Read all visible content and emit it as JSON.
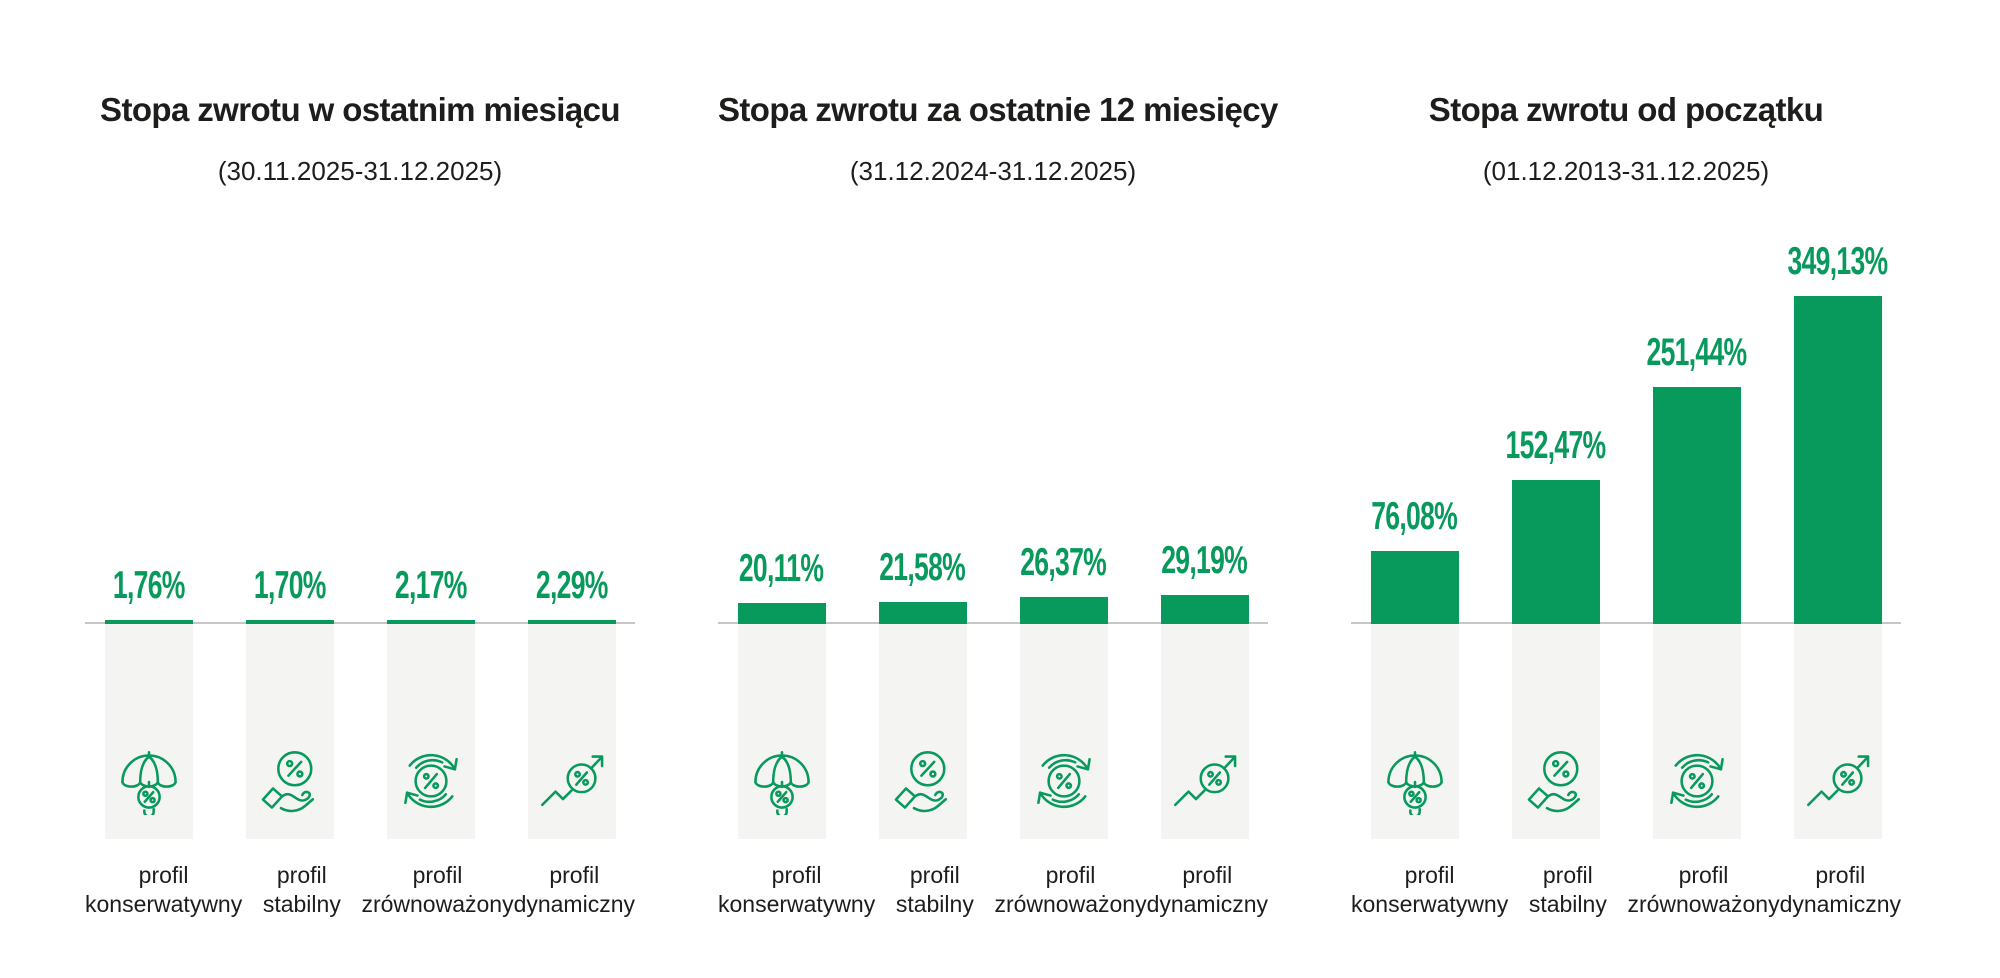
{
  "colors": {
    "accent_green": "#089a5c",
    "bar_green": "#089a5c",
    "text_dark": "#1d1d1b",
    "column_background": "#f4f4f2",
    "baseline_gray": "#c6c6c6"
  },
  "icons": {
    "profile_icons": [
      "umbrella-percent-icon",
      "hand-holding-percent-icon",
      "cycle-percent-icon",
      "growth-arrow-percent-icon"
    ]
  },
  "chart_data": [
    {
      "type": "bar",
      "title": "Stopa zwrotu w ostatnim miesiącu",
      "subtitle": "(30.11.2025-31.12.2025)",
      "categories": [
        "profil konserwatywny",
        "profil stabilny",
        "profil zrównoważony",
        "profil dynamiczny"
      ],
      "values": [
        1.76,
        1.7,
        2.17,
        2.29
      ],
      "value_labels": [
        "1,76%",
        "1,70%",
        "2,17%",
        "2,29%"
      ],
      "unit": "%",
      "bar_color": "#089a5c",
      "grid": false,
      "legend": false,
      "ylim": [
        0,
        350
      ],
      "shared_y_scale_across_charts": true
    },
    {
      "type": "bar",
      "title": "Stopa zwrotu za ostatnie 12 miesięcy",
      "subtitle": "(31.12.2024-31.12.2025)",
      "categories": [
        "profil konserwatywny",
        "profil stabilny",
        "profil zrównoważony",
        "profil dynamiczny"
      ],
      "values": [
        20.11,
        21.58,
        26.37,
        29.19
      ],
      "value_labels": [
        "20,11%",
        "21,58%",
        "26,37%",
        "29,19%"
      ],
      "unit": "%",
      "bar_color": "#089a5c",
      "grid": false,
      "legend": false,
      "ylim": [
        0,
        350
      ],
      "shared_y_scale_across_charts": true
    },
    {
      "type": "bar",
      "title": "Stopa zwrotu od początku",
      "subtitle": "(01.12.2013-31.12.2025)",
      "categories": [
        "profil konserwatywny",
        "profil stabilny",
        "profil zrównoważony",
        "profil dynamiczny"
      ],
      "values": [
        76.08,
        152.47,
        251.44,
        349.13
      ],
      "value_labels": [
        "76,08%",
        "152,47%",
        "251,44%",
        "349,13%"
      ],
      "unit": "%",
      "bar_color": "#089a5c",
      "grid": false,
      "legend": false,
      "ylim": [
        0,
        350
      ],
      "shared_y_scale_across_charts": true
    }
  ]
}
